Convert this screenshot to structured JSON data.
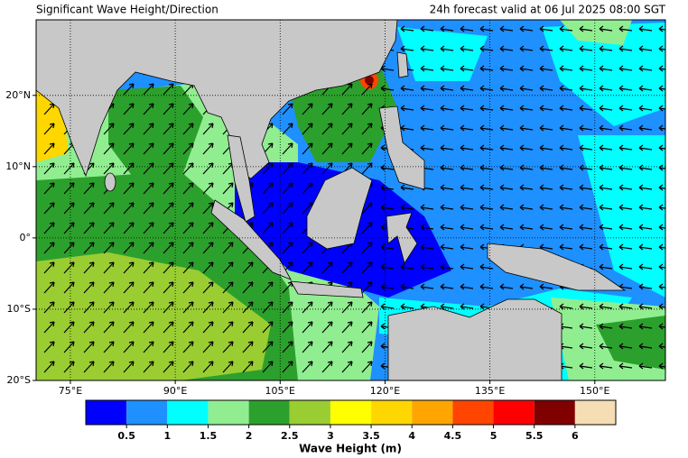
{
  "map": {
    "title": "Significant Wave Height/Direction",
    "subtitle": "24h forecast valid at 06 Jul 2025 08:00 SGT",
    "xlim": [
      70.1,
      160.1
    ],
    "ylim": [
      -20,
      30.6
    ],
    "xticks": [
      {
        "value": 75,
        "label": "75°E"
      },
      {
        "value": 90,
        "label": "90°E"
      },
      {
        "value": 105,
        "label": "105°E"
      },
      {
        "value": 120,
        "label": "120°E"
      },
      {
        "value": 135,
        "label": "135°E"
      },
      {
        "value": 150,
        "label": "150°E"
      }
    ],
    "yticks": [
      {
        "value": 20,
        "label": "20°N"
      },
      {
        "value": 10,
        "label": "10°N"
      },
      {
        "value": 0,
        "label": "0°"
      },
      {
        "value": -10,
        "label": "10°S"
      },
      {
        "value": -20,
        "label": "20°S"
      }
    ]
  },
  "colorbar": {
    "label": "Wave Height (m)",
    "colors": [
      "#0000ff",
      "#1e90ff",
      "#00ffff",
      "#90ee90",
      "#2ca02c",
      "#9acd32",
      "#ffff00",
      "#ffd700",
      "#ffa500",
      "#ff4500",
      "#ff0000",
      "#800000",
      "#f5deb3"
    ],
    "ticks": [
      0.5,
      1,
      1.5,
      2,
      2.5,
      3,
      3.5,
      4,
      4.5,
      5,
      5.5,
      6
    ]
  }
}
